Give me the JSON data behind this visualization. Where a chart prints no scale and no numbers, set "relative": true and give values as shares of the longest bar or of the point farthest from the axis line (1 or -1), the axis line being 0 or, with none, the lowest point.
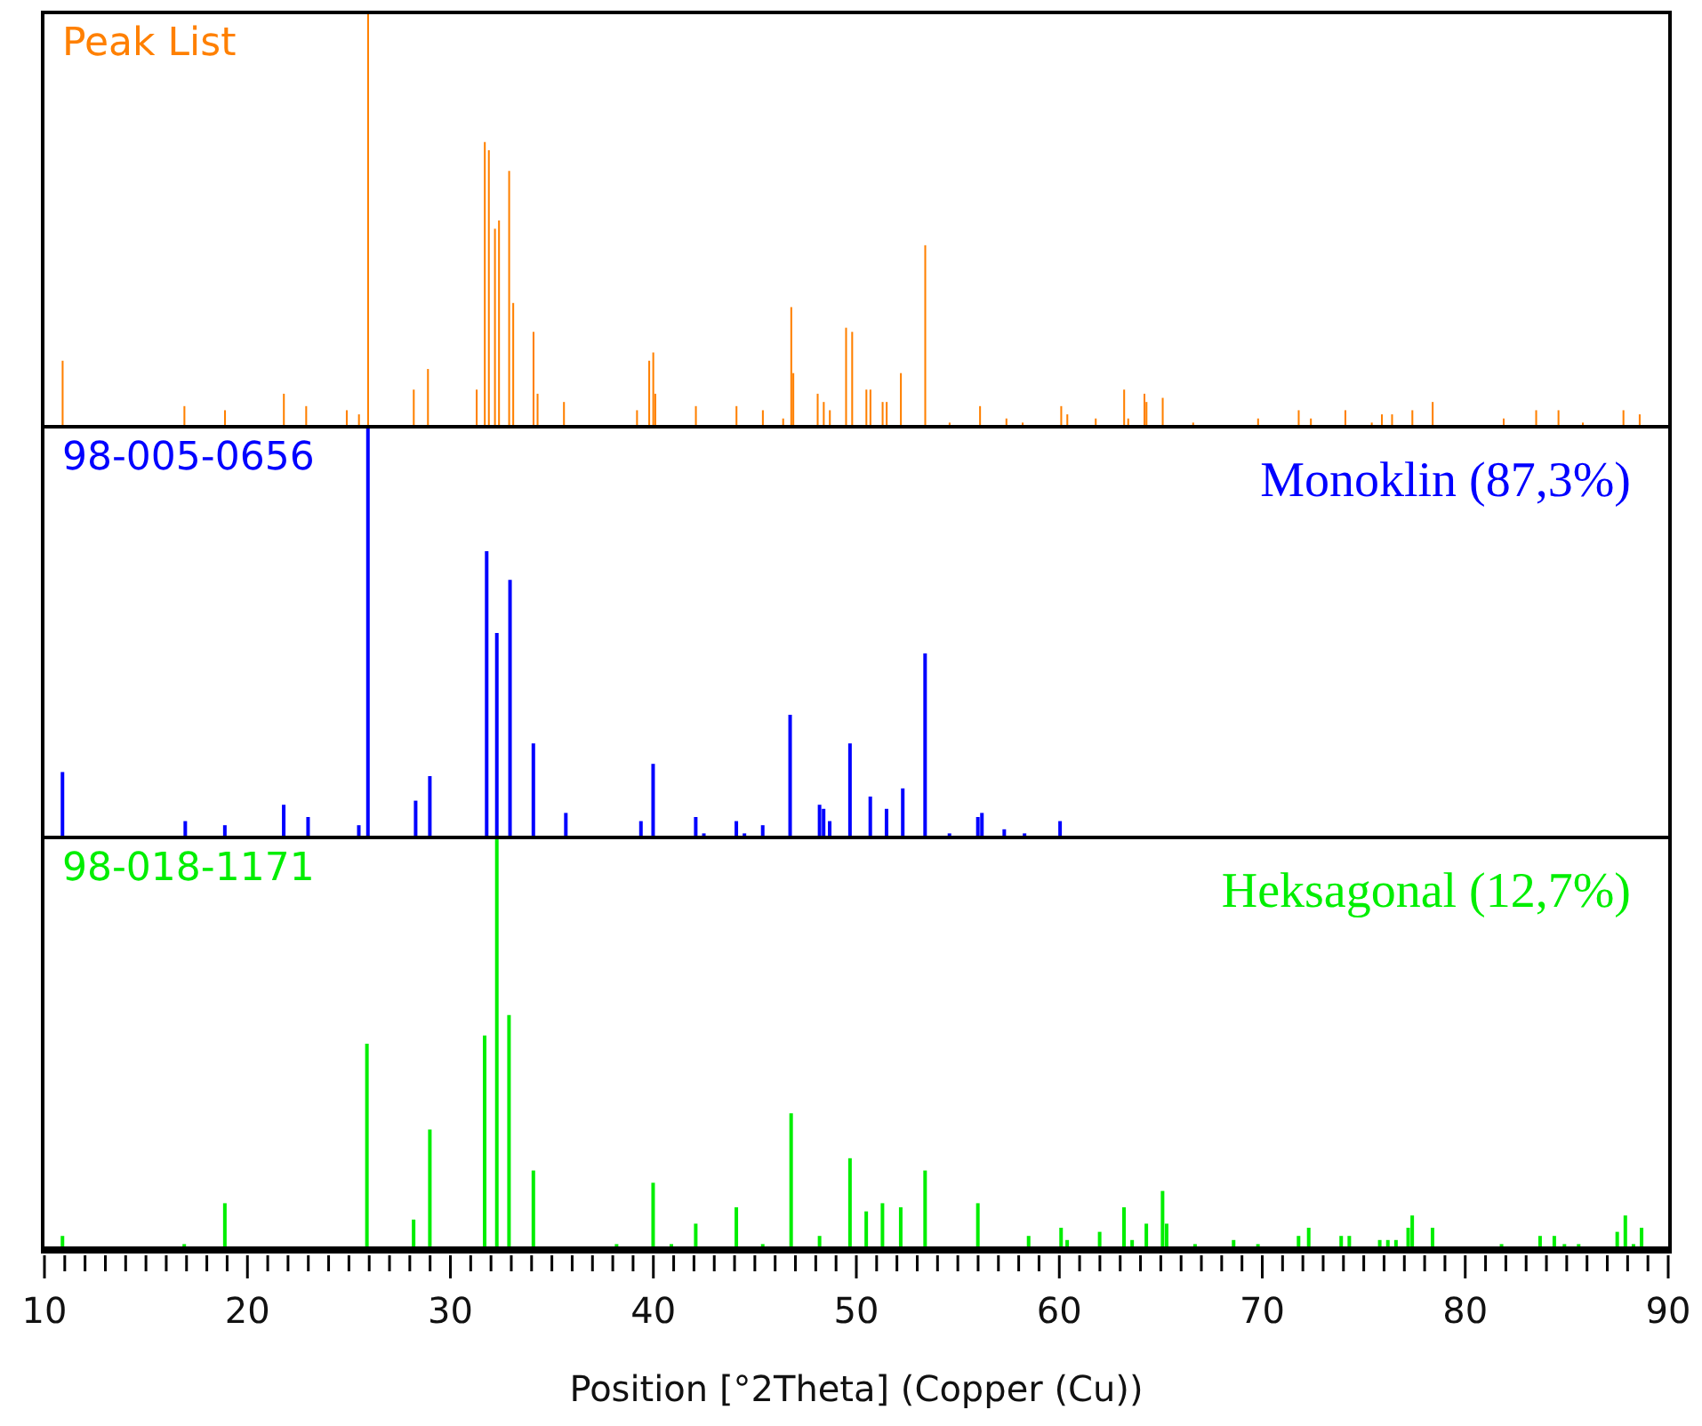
{
  "chart_data": [
    {
      "type": "bar",
      "title": "Peak List",
      "relative": true,
      "xlim": [
        10,
        90
      ],
      "tick_labels": false,
      "x": [
        10.9,
        16.9,
        18.9,
        21.8,
        22.9,
        24.9,
        25.5,
        25.95,
        28.2,
        28.9,
        31.3,
        31.7,
        31.9,
        32.2,
        32.4,
        32.9,
        33.1,
        34.1,
        34.3,
        35.6,
        39.2,
        39.8,
        40.0,
        40.1,
        42.1,
        44.1,
        45.4,
        46.4,
        46.8,
        46.9,
        48.1,
        48.4,
        48.7,
        49.5,
        49.8,
        50.5,
        50.7,
        51.3,
        51.5,
        52.2,
        53.4,
        54.6,
        56.1,
        57.4,
        58.2,
        60.1,
        60.4,
        61.8,
        63.2,
        63.4,
        64.2,
        64.3,
        65.1,
        66.6,
        69.8,
        71.8,
        72.4,
        74.1,
        75.4,
        75.9,
        76.4,
        77.4,
        78.4,
        81.9,
        83.5,
        84.6,
        85.8,
        87.8,
        88.6
      ],
      "series": [
        {
          "color": "#ff8000",
          "values": [
            0.16,
            0.05,
            0.04,
            0.08,
            0.05,
            0.04,
            0.03,
            1,
            0.09,
            0.14,
            0.09,
            0.69,
            0.67,
            0.48,
            0.5,
            0.62,
            0.3,
            0.23,
            0.08,
            0.06,
            0.04,
            0.16,
            0.18,
            0.08,
            0.05,
            0.05,
            0.04,
            0.02,
            0.29,
            0.13,
            0.08,
            0.06,
            0.04,
            0.24,
            0.23,
            0.09,
            0.09,
            0.06,
            0.06,
            0.13,
            0.44,
            0.01,
            0.05,
            0.02,
            0.01,
            0.05,
            0.03,
            0.02,
            0.09,
            0.02,
            0.08,
            0.06,
            0.07,
            0.01,
            0.02,
            0.04,
            0.02,
            0.04,
            0.01,
            0.03,
            0.03,
            0.04,
            0.06,
            0.02,
            0.04,
            0.04,
            0.01,
            0.04,
            0.03
          ]
        }
      ]
    },
    {
      "type": "bar",
      "title": "98-005-0656",
      "annotations": [
        "Monoklin (87,3%)"
      ],
      "relative": true,
      "xlim": [
        10,
        90
      ],
      "tick_labels": false,
      "x": [
        10.9,
        16.95,
        18.9,
        21.8,
        23.0,
        25.5,
        25.95,
        28.3,
        29.0,
        31.8,
        32.3,
        32.95,
        34.1,
        35.7,
        39.4,
        40.0,
        42.1,
        42.5,
        44.1,
        44.5,
        45.4,
        46.75,
        48.2,
        48.4,
        48.7,
        49.7,
        50.7,
        51.5,
        52.3,
        53.4,
        54.6,
        56.0,
        56.2,
        57.3,
        58.3,
        60.05
      ],
      "series": [
        {
          "color": "#0000ff",
          "values": [
            0.16,
            0.04,
            0.03,
            0.08,
            0.05,
            0.03,
            1,
            0.09,
            0.15,
            0.7,
            0.5,
            0.63,
            0.23,
            0.06,
            0.04,
            0.18,
            0.05,
            0.01,
            0.04,
            0.01,
            0.03,
            0.3,
            0.08,
            0.07,
            0.04,
            0.23,
            0.1,
            0.07,
            0.12,
            0.45,
            0.01,
            0.05,
            0.06,
            0.02,
            0.01,
            0.04
          ]
        }
      ]
    },
    {
      "type": "bar",
      "title": "98-018-1171",
      "annotations": [
        "Heksagonal (12,7%)"
      ],
      "relative": true,
      "xlim": [
        10,
        90
      ],
      "tick_labels": "x",
      "xlabel": "Position [°2Theta] (Copper (Cu))",
      "xticks": [
        10,
        {
          "value": 11,
          "label": null
        },
        {
          "value": 12,
          "label": null
        },
        {
          "value": 13,
          "label": null
        },
        {
          "value": 14,
          "label": null
        },
        {
          "value": 15,
          "label": null
        },
        {
          "value": 16,
          "label": null
        },
        {
          "value": 17,
          "label": null
        },
        {
          "value": 18,
          "label": null
        },
        {
          "value": 19,
          "label": null
        },
        20,
        {
          "value": 21,
          "label": null
        },
        {
          "value": 22,
          "label": null
        },
        {
          "value": 23,
          "label": null
        },
        {
          "value": 24,
          "label": null
        },
        {
          "value": 25,
          "label": null
        },
        {
          "value": 26,
          "label": null
        },
        {
          "value": 27,
          "label": null
        },
        {
          "value": 28,
          "label": null
        },
        {
          "value": 29,
          "label": null
        },
        30,
        {
          "value": 31,
          "label": null
        },
        {
          "value": 32,
          "label": null
        },
        {
          "value": 33,
          "label": null
        },
        {
          "value": 34,
          "label": null
        },
        {
          "value": 35,
          "label": null
        },
        {
          "value": 36,
          "label": null
        },
        {
          "value": 37,
          "label": null
        },
        {
          "value": 38,
          "label": null
        },
        {
          "value": 39,
          "label": null
        },
        40,
        {
          "value": 41,
          "label": null
        },
        {
          "value": 42,
          "label": null
        },
        {
          "value": 43,
          "label": null
        },
        {
          "value": 44,
          "label": null
        },
        {
          "value": 45,
          "label": null
        },
        {
          "value": 46,
          "label": null
        },
        {
          "value": 47,
          "label": null
        },
        {
          "value": 48,
          "label": null
        },
        {
          "value": 49,
          "label": null
        },
        50,
        {
          "value": 51,
          "label": null
        },
        {
          "value": 52,
          "label": null
        },
        {
          "value": 53,
          "label": null
        },
        {
          "value": 54,
          "label": null
        },
        {
          "value": 55,
          "label": null
        },
        {
          "value": 56,
          "label": null
        },
        {
          "value": 57,
          "label": null
        },
        {
          "value": 58,
          "label": null
        },
        {
          "value": 59,
          "label": null
        },
        60,
        {
          "value": 61,
          "label": null
        },
        {
          "value": 62,
          "label": null
        },
        {
          "value": 63,
          "label": null
        },
        {
          "value": 64,
          "label": null
        },
        {
          "value": 65,
          "label": null
        },
        {
          "value": 66,
          "label": null
        },
        {
          "value": 67,
          "label": null
        },
        {
          "value": 68,
          "label": null
        },
        {
          "value": 69,
          "label": null
        },
        70,
        {
          "value": 71,
          "label": null
        },
        {
          "value": 72,
          "label": null
        },
        {
          "value": 73,
          "label": null
        },
        {
          "value": 74,
          "label": null
        },
        {
          "value": 75,
          "label": null
        },
        {
          "value": 76,
          "label": null
        },
        {
          "value": 77,
          "label": null
        },
        {
          "value": 78,
          "label": null
        },
        {
          "value": 79,
          "label": null
        },
        80,
        {
          "value": 81,
          "label": null
        },
        {
          "value": 82,
          "label": null
        },
        {
          "value": 83,
          "label": null
        },
        {
          "value": 84,
          "label": null
        },
        {
          "value": 85,
          "label": null
        },
        {
          "value": 86,
          "label": null
        },
        {
          "value": 87,
          "label": null
        },
        {
          "value": 88,
          "label": null
        },
        {
          "value": 89,
          "label": null
        },
        90
      ],
      "x": [
        10.9,
        16.9,
        18.9,
        25.9,
        28.2,
        29.0,
        31.7,
        32.3,
        32.9,
        34.1,
        38.2,
        40.0,
        40.9,
        42.1,
        44.1,
        45.4,
        46.8,
        48.2,
        49.7,
        50.5,
        51.3,
        52.2,
        53.4,
        56.0,
        58.5,
        60.1,
        60.4,
        62.0,
        63.2,
        63.6,
        64.3,
        65.1,
        65.3,
        66.7,
        68.6,
        69.8,
        71.8,
        72.3,
        73.9,
        74.3,
        75.8,
        76.2,
        76.6,
        77.2,
        77.4,
        78.4,
        81.8,
        83.7,
        84.4,
        84.9,
        85.6,
        87.5,
        87.9,
        88.3,
        88.7
      ],
      "series": [
        {
          "color": "#00ee00",
          "values": [
            0.03,
            0.01,
            0.11,
            0.5,
            0.07,
            0.29,
            0.52,
            1,
            0.57,
            0.19,
            0.01,
            0.16,
            0.01,
            0.06,
            0.1,
            0.01,
            0.33,
            0.03,
            0.22,
            0.09,
            0.11,
            0.1,
            0.19,
            0.11,
            0.03,
            0.05,
            0.02,
            0.04,
            0.1,
            0.02,
            0.06,
            0.14,
            0.06,
            0.01,
            0.02,
            0.01,
            0.03,
            0.05,
            0.03,
            0.03,
            0.02,
            0.02,
            0.02,
            0.05,
            0.08,
            0.05,
            0.01,
            0.03,
            0.03,
            0.01,
            0.01,
            0.04,
            0.08,
            0.01,
            0.05
          ]
        }
      ]
    }
  ]
}
